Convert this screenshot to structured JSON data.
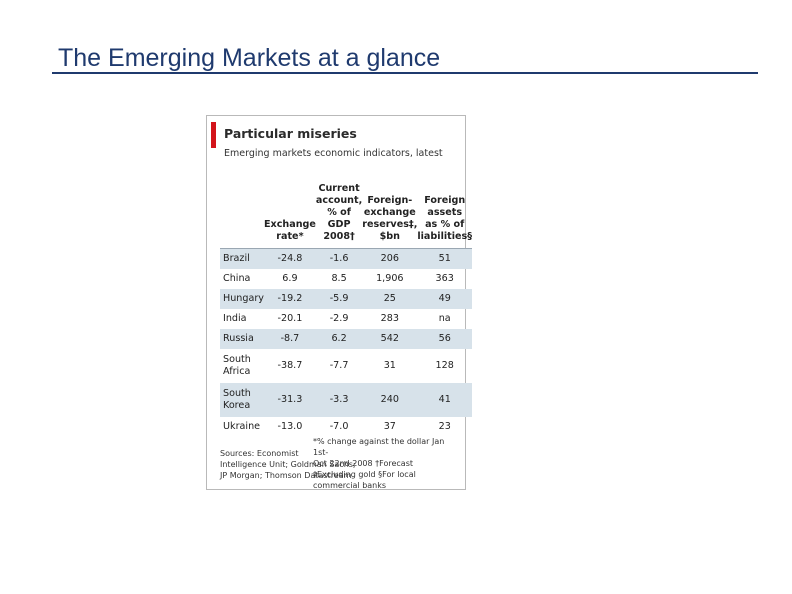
{
  "slide": {
    "title": "The Emerging Markets at a glance"
  },
  "figure": {
    "title": "Particular miseries",
    "subtitle": "Emerging markets economic indicators, latest",
    "accent_color": "#d3141b",
    "row_shade_color": "#d7e2ea",
    "columns": [
      "",
      "Exchange\nrate*",
      "Current\naccount,\n% of GDP\n2008†",
      "Foreign-\nexchange\nreserves‡,\n$bn",
      "Foreign\nassets\nas % of\nliabilities§"
    ],
    "rows": [
      {
        "country": "Brazil",
        "exchange_rate": "-24.8",
        "current_account": "-1.6",
        "reserves": "206",
        "foreign_assets": "51"
      },
      {
        "country": "China",
        "exchange_rate": "6.9",
        "current_account": "8.5",
        "reserves": "1,906",
        "foreign_assets": "363"
      },
      {
        "country": "Hungary",
        "exchange_rate": "-19.2",
        "current_account": "-5.9",
        "reserves": "25",
        "foreign_assets": "49"
      },
      {
        "country": "India",
        "exchange_rate": "-20.1",
        "current_account": "-2.9",
        "reserves": "283",
        "foreign_assets": "na"
      },
      {
        "country": "Russia",
        "exchange_rate": "-8.7",
        "current_account": "6.2",
        "reserves": "542",
        "foreign_assets": "56"
      },
      {
        "country": "South\nAfrica",
        "exchange_rate": "-38.7",
        "current_account": "-7.7",
        "reserves": "31",
        "foreign_assets": "128"
      },
      {
        "country": "South\nKorea",
        "exchange_rate": "-31.3",
        "current_account": "-3.3",
        "reserves": "240",
        "foreign_assets": "41"
      },
      {
        "country": "Ukraine",
        "exchange_rate": "-13.0",
        "current_account": "-7.0",
        "reserves": "37",
        "foreign_assets": "23"
      }
    ],
    "footnotes": {
      "sources": "Sources: Economist\nIntelligence Unit; Goldman Sachs;\nJP Morgan; Thomson Datastream",
      "notes": "*% change against the dollar Jan 1st-\nOct 22nd 2008   †Forecast\n‡Excluding gold   §For local\ncommercial banks"
    }
  }
}
